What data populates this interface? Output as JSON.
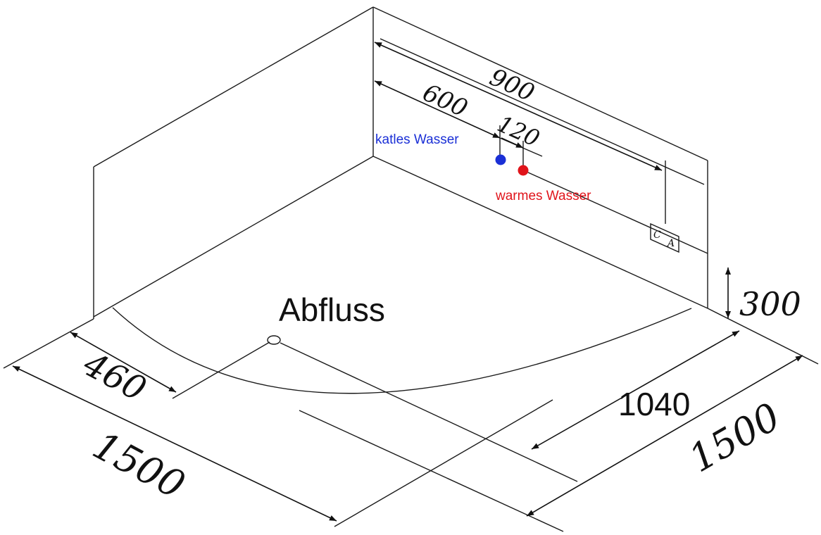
{
  "labels": {
    "dim_900": "900",
    "dim_600": "600",
    "dim_120": "120",
    "dim_300": "300",
    "dim_460": "460",
    "dim_1500_left": "1500",
    "dim_1500_right": "1500",
    "dim_1040": "1040",
    "cold_water": "katles Wasser",
    "warm_water": "warmes Wasser",
    "drain": "Abfluss",
    "box_c": "C",
    "box_a": "A"
  },
  "colors": {
    "cold": "#1a2fd6",
    "warm": "#e0141b",
    "line": "#1a1a1a"
  }
}
